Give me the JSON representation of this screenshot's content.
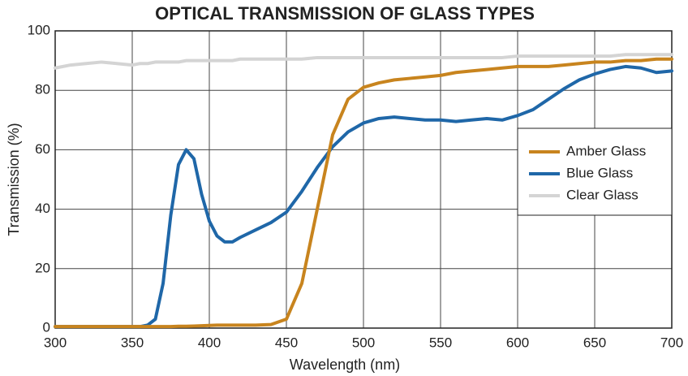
{
  "chart_data": {
    "type": "line",
    "title": "OPTICAL TRANSMISSION OF GLASS TYPES",
    "xlabel": "Wavelength (nm)",
    "ylabel": "Transmission (%)",
    "x": [
      300,
      310,
      320,
      330,
      340,
      350,
      355,
      360,
      365,
      370,
      375,
      380,
      385,
      390,
      395,
      400,
      405,
      410,
      415,
      420,
      430,
      440,
      450,
      460,
      470,
      480,
      490,
      500,
      510,
      520,
      530,
      540,
      550,
      560,
      570,
      580,
      590,
      600,
      610,
      620,
      630,
      640,
      650,
      660,
      670,
      680,
      690,
      700
    ],
    "series": [
      {
        "name": "Amber Glass",
        "color": "#c8841e",
        "values": [
          0.5,
          0.5,
          0.5,
          0.5,
          0.5,
          0.5,
          0.5,
          0.5,
          0.5,
          0.5,
          0.5,
          0.6,
          0.6,
          0.7,
          0.8,
          0.9,
          1,
          1,
          1,
          1,
          1,
          1.2,
          3,
          15,
          40,
          65,
          77,
          81,
          82.5,
          83.5,
          84,
          84.5,
          85,
          86,
          86.5,
          87,
          87.5,
          88,
          88,
          88,
          88.5,
          89,
          89.5,
          89.5,
          90,
          90,
          90.5,
          90.5
        ]
      },
      {
        "name": "Blue Glass",
        "color": "#1f67a8",
        "values": [
          0.5,
          0.5,
          0.5,
          0.5,
          0.5,
          0.5,
          0.5,
          1,
          3,
          15,
          38,
          55,
          60,
          57,
          45,
          36,
          31,
          29,
          29,
          30.5,
          33,
          35.5,
          39,
          46,
          54,
          61,
          66,
          69,
          70.5,
          71,
          70.5,
          70,
          70,
          69.5,
          70,
          70.5,
          70,
          71.5,
          73.5,
          77,
          80.5,
          83.5,
          85.5,
          87,
          88,
          87.5,
          86,
          86.5
        ]
      },
      {
        "name": "Clear Glass",
        "color": "#d4d4d4",
        "values": [
          87.5,
          88.5,
          89,
          89.5,
          89,
          88.5,
          89,
          89,
          89.5,
          89.5,
          89.5,
          89.5,
          90,
          90,
          90,
          90,
          90,
          90,
          90,
          90.5,
          90.5,
          90.5,
          90.5,
          90.5,
          91,
          91,
          91,
          91,
          91,
          91,
          91,
          91,
          91,
          91,
          91,
          91,
          91,
          91.5,
          91.5,
          91.5,
          91.5,
          91.5,
          91.5,
          91.5,
          92,
          92,
          92,
          92
        ]
      }
    ],
    "xlim": [
      300,
      700
    ],
    "xticks": [
      300,
      350,
      400,
      450,
      500,
      550,
      600,
      650,
      700
    ],
    "ylim": [
      0,
      100
    ],
    "yticks": [
      0,
      20,
      40,
      60,
      80,
      100
    ],
    "grid": true,
    "legend": "right"
  }
}
